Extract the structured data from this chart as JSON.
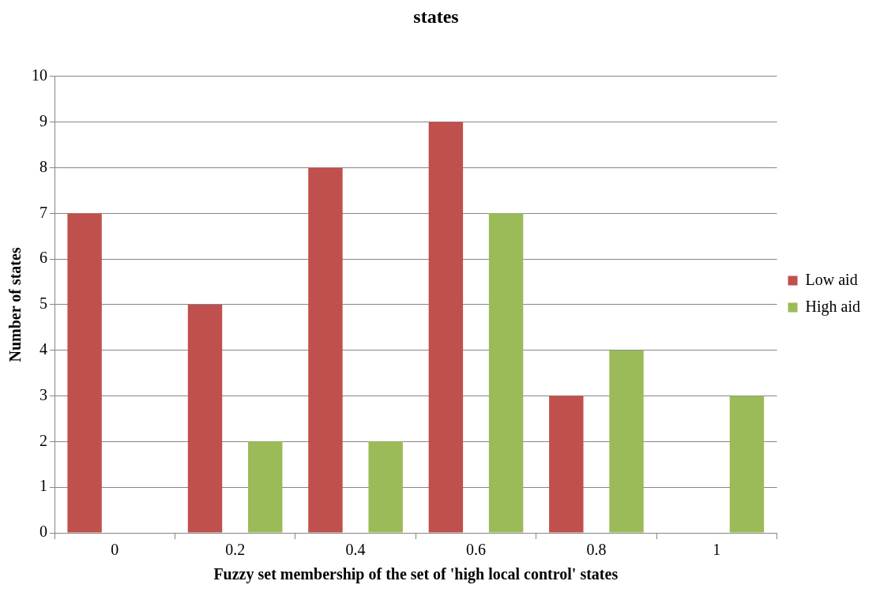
{
  "chart_data": {
    "type": "bar",
    "title": "states",
    "xlabel": "Fuzzy set membership of the set of 'high local control' states",
    "ylabel": "Number of states",
    "categories": [
      "0",
      "0.2",
      "0.4",
      "0.6",
      "0.8",
      "1"
    ],
    "series": [
      {
        "name": "Low aid",
        "color": "#c0504d",
        "values": [
          7,
          5,
          8,
          9,
          3,
          0
        ]
      },
      {
        "name": "High aid",
        "color": "#9bbb59",
        "values": [
          0,
          2,
          2,
          7,
          4,
          3
        ]
      }
    ],
    "ylim": [
      0,
      10
    ],
    "yticks": [
      0,
      1,
      2,
      3,
      4,
      5,
      6,
      7,
      8,
      9,
      10
    ],
    "grid": "y",
    "legend": "right"
  }
}
